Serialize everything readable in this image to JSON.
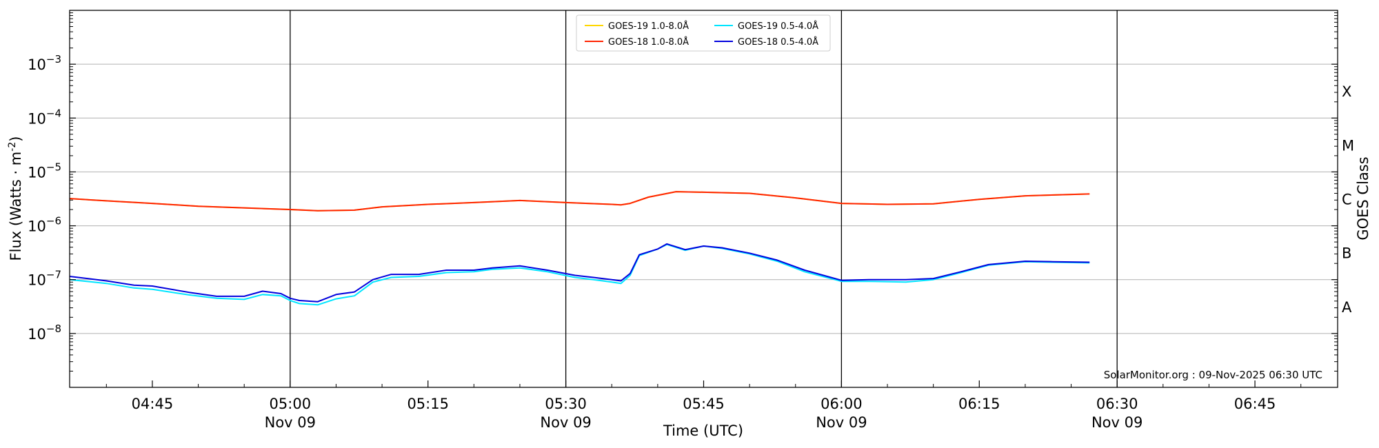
{
  "chart_data": {
    "type": "line",
    "title": "",
    "xlabel": "Time (UTC)",
    "ylabel": "Flux (Watts · m",
    "ylabel_sup": "-2",
    "ylabel_close": ")",
    "y2label": "GOES Class",
    "y_scale": "log",
    "ylim": [
      1e-09,
      0.01
    ],
    "xlim": [
      "04:36",
      "06:54"
    ],
    "grid": "horizontal",
    "legend_position": "top-center",
    "x_ticks": [
      {
        "t": "04:45",
        "label": "04:45",
        "sub": ""
      },
      {
        "t": "05:00",
        "label": "05:00",
        "sub": "Nov 09"
      },
      {
        "t": "05:15",
        "label": "05:15",
        "sub": ""
      },
      {
        "t": "05:30",
        "label": "05:30",
        "sub": "Nov 09"
      },
      {
        "t": "05:45",
        "label": "05:45",
        "sub": ""
      },
      {
        "t": "06:00",
        "label": "06:00",
        "sub": "Nov 09"
      },
      {
        "t": "06:15",
        "label": "06:15",
        "sub": ""
      },
      {
        "t": "06:30",
        "label": "06:30",
        "sub": "Nov 09"
      },
      {
        "t": "06:45",
        "label": "06:45",
        "sub": ""
      }
    ],
    "y_ticks": [
      {
        "value": 1e-08,
        "base": "10",
        "exp": "−8"
      },
      {
        "value": 1e-07,
        "base": "10",
        "exp": "−7"
      },
      {
        "value": 1e-06,
        "base": "10",
        "exp": "−6"
      },
      {
        "value": 1e-05,
        "base": "10",
        "exp": "−5"
      },
      {
        "value": 0.0001,
        "base": "10",
        "exp": "−4"
      },
      {
        "value": 0.001,
        "base": "10",
        "exp": "−3"
      }
    ],
    "class_labels": [
      {
        "label": "A",
        "value": 3.16e-08
      },
      {
        "label": "B",
        "value": 3.16e-07
      },
      {
        "label": "C",
        "value": 3.16e-06
      },
      {
        "label": "M",
        "value": 3.16e-05
      },
      {
        "label": "X",
        "value": 0.000316
      }
    ],
    "vertical_lines": [
      "05:00",
      "05:30",
      "06:00",
      "06:30"
    ],
    "annotation": "SolarMonitor.org : 09-Nov-2025 06:30 UTC",
    "series": [
      {
        "name": "GOES-19 1.0-8.0Å",
        "color": "#ffd700",
        "times": [
          "04:36",
          "04:40",
          "04:45",
          "04:50",
          "04:55",
          "05:00",
          "05:03",
          "05:07",
          "05:10",
          "05:15",
          "05:20",
          "05:25",
          "05:30",
          "05:35",
          "05:36",
          "05:37",
          "05:39",
          "05:42",
          "05:45",
          "05:50",
          "05:55",
          "06:00",
          "06:05",
          "06:10",
          "06:15",
          "06:20",
          "06:27"
        ],
        "values": [
          3.2e-06,
          2.9e-06,
          2.6e-06,
          2.3e-06,
          2.15e-06,
          2e-06,
          1.9e-06,
          1.95e-06,
          2.25e-06,
          2.5e-06,
          2.7e-06,
          2.95e-06,
          2.7e-06,
          2.5e-06,
          2.45e-06,
          2.6e-06,
          3.4e-06,
          4.3e-06,
          4.2e-06,
          4e-06,
          3.3e-06,
          2.6e-06,
          2.5e-06,
          2.55e-06,
          3.1e-06,
          3.6e-06,
          3.9e-06
        ]
      },
      {
        "name": "GOES-18 1.0-8.0Å",
        "color": "#ff2200",
        "times": [
          "04:36",
          "04:40",
          "04:45",
          "04:50",
          "04:55",
          "05:00",
          "05:03",
          "05:07",
          "05:10",
          "05:15",
          "05:20",
          "05:25",
          "05:30",
          "05:35",
          "05:36",
          "05:37",
          "05:39",
          "05:42",
          "05:45",
          "05:50",
          "05:55",
          "06:00",
          "06:05",
          "06:10",
          "06:15",
          "06:20",
          "06:27"
        ],
        "values": [
          3.2e-06,
          2.9e-06,
          2.6e-06,
          2.3e-06,
          2.15e-06,
          2e-06,
          1.9e-06,
          1.95e-06,
          2.25e-06,
          2.5e-06,
          2.7e-06,
          2.95e-06,
          2.7e-06,
          2.5e-06,
          2.45e-06,
          2.6e-06,
          3.4e-06,
          4.3e-06,
          4.2e-06,
          4e-06,
          3.3e-06,
          2.6e-06,
          2.5e-06,
          2.55e-06,
          3.1e-06,
          3.6e-06,
          3.9e-06
        ]
      },
      {
        "name": "GOES-19 0.5-4.0Å",
        "color": "#00e5ff",
        "times": [
          "04:36",
          "04:40",
          "04:43",
          "04:45",
          "04:49",
          "04:52",
          "04:55",
          "04:57",
          "04:59",
          "05:00",
          "05:01",
          "05:03",
          "05:05",
          "05:07",
          "05:09",
          "05:11",
          "05:14",
          "05:17",
          "05:20",
          "05:22",
          "05:25",
          "05:28",
          "05:31",
          "05:33",
          "05:35",
          "05:36",
          "05:37",
          "05:38",
          "05:40",
          "05:41",
          "05:43",
          "05:45",
          "05:47",
          "05:50",
          "05:53",
          "05:56",
          "06:00",
          "06:03",
          "06:07",
          "06:10",
          "06:13",
          "06:16",
          "06:20",
          "06:23",
          "06:27"
        ],
        "values": [
          1e-07,
          8.5e-08,
          7e-08,
          6.6e-08,
          5.2e-08,
          4.5e-08,
          4.3e-08,
          5.3e-08,
          5e-08,
          4.1e-08,
          3.6e-08,
          3.4e-08,
          4.4e-08,
          5e-08,
          9e-08,
          1.1e-07,
          1.15e-07,
          1.35e-07,
          1.4e-07,
          1.55e-07,
          1.65e-07,
          1.4e-07,
          1.1e-07,
          1e-07,
          9e-08,
          8.5e-08,
          1.2e-07,
          2.8e-07,
          3.7e-07,
          4.5e-07,
          3.5e-07,
          4.2e-07,
          3.8e-07,
          3e-07,
          2.2e-07,
          1.4e-07,
          9.3e-08,
          9.3e-08,
          9e-08,
          1e-07,
          1.35e-07,
          1.85e-07,
          2.15e-07,
          2.1e-07,
          2.05e-07
        ]
      },
      {
        "name": "GOES-18 0.5-4.0Å",
        "color": "#0000dd",
        "times": [
          "04:36",
          "04:40",
          "04:43",
          "04:45",
          "04:49",
          "04:52",
          "04:55",
          "04:57",
          "04:59",
          "05:00",
          "05:01",
          "05:03",
          "05:05",
          "05:07",
          "05:09",
          "05:11",
          "05:14",
          "05:17",
          "05:20",
          "05:22",
          "05:25",
          "05:28",
          "05:31",
          "05:33",
          "05:35",
          "05:36",
          "05:37",
          "05:38",
          "05:40",
          "05:41",
          "05:43",
          "05:45",
          "05:47",
          "05:50",
          "05:53",
          "05:56",
          "06:00",
          "06:03",
          "06:07",
          "06:10",
          "06:13",
          "06:16",
          "06:20",
          "06:23",
          "06:27"
        ],
        "values": [
          1.15e-07,
          9.5e-08,
          7.9e-08,
          7.6e-08,
          5.8e-08,
          4.9e-08,
          4.9e-08,
          6.1e-08,
          5.5e-08,
          4.5e-08,
          4.1e-08,
          3.9e-08,
          5.3e-08,
          5.9e-08,
          1e-07,
          1.25e-07,
          1.25e-07,
          1.5e-07,
          1.5e-07,
          1.65e-07,
          1.8e-07,
          1.5e-07,
          1.2e-07,
          1.1e-07,
          1e-07,
          9.5e-08,
          1.3e-07,
          2.9e-07,
          3.7e-07,
          4.6e-07,
          3.6e-07,
          4.2e-07,
          3.9e-07,
          3.1e-07,
          2.3e-07,
          1.5e-07,
          9.7e-08,
          1e-07,
          1e-07,
          1.05e-07,
          1.4e-07,
          1.9e-07,
          2.2e-07,
          2.15e-07,
          2.1e-07
        ]
      }
    ]
  }
}
